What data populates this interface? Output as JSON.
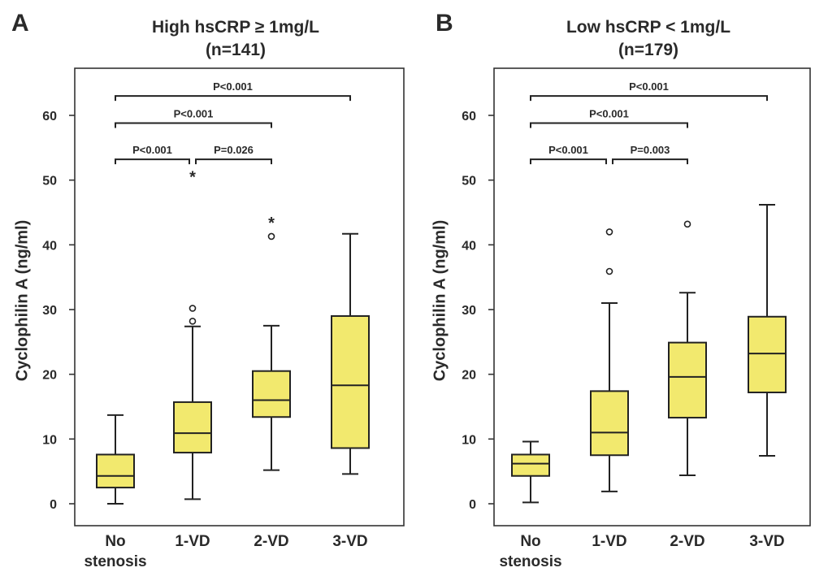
{
  "colors": {
    "box_fill": "#f2e96e",
    "line": "#222222"
  },
  "chart_data": [
    {
      "type": "box",
      "panel_label": "A",
      "title_lines": [
        "High hsCRP ≥ 1mg/L",
        "(n=141)"
      ],
      "ylabel": "Cyclophilin A (ng/ml)",
      "ylim": [
        -3.5,
        67
      ],
      "yticks": [
        "0",
        "10",
        "20",
        "30",
        "40",
        "50",
        "60"
      ],
      "categories": [
        {
          "label_lines": [
            "No",
            "stenosis"
          ],
          "min": 0,
          "q1": 2.5,
          "median": 4.3,
          "q3": 7.6,
          "max": 13.7,
          "outliers": []
        },
        {
          "label_lines": [
            "1-VD"
          ],
          "min": 0.7,
          "q1": 7.9,
          "median": 10.9,
          "q3": 15.7,
          "max": 27.4,
          "outliers": [
            {
              "value": 28.2,
              "marker": "circle"
            },
            {
              "value": 30.2,
              "marker": "circle"
            },
            {
              "value": 50.8,
              "marker": "star"
            }
          ]
        },
        {
          "label_lines": [
            "2-VD"
          ],
          "min": 5.2,
          "q1": 13.4,
          "median": 16.0,
          "q3": 20.5,
          "max": 27.5,
          "outliers": [
            {
              "value": 41.3,
              "marker": "circle"
            },
            {
              "value": 43.7,
              "marker": "star"
            }
          ]
        },
        {
          "label_lines": [
            "3-VD"
          ],
          "min": 4.6,
          "q1": 8.6,
          "median": 18.3,
          "q3": 29.0,
          "max": 41.7,
          "outliers": []
        }
      ],
      "comparisons": [
        {
          "from": 0,
          "to": 3,
          "label": "P<0.001",
          "level": 63.0
        },
        {
          "from": 0,
          "to": 2,
          "label": "P<0.001",
          "level": 58.8
        },
        {
          "from": 0,
          "to": 1,
          "label": "P<0.001",
          "level": 53.2
        },
        {
          "from": 1,
          "to": 2,
          "label": "P=0.026",
          "level": 53.2
        }
      ]
    },
    {
      "type": "box",
      "panel_label": "B",
      "title_lines": [
        "Low hsCRP < 1mg/L",
        "(n=179)"
      ],
      "ylabel": "Cyclophilin A (ng/ml)",
      "ylim": [
        -3.5,
        67
      ],
      "yticks": [
        "0",
        "10",
        "20",
        "30",
        "40",
        "50",
        "60"
      ],
      "categories": [
        {
          "label_lines": [
            "No",
            "stenosis"
          ],
          "min": 0.2,
          "q1": 4.3,
          "median": 6.2,
          "q3": 7.6,
          "max": 9.6,
          "outliers": []
        },
        {
          "label_lines": [
            "1-VD"
          ],
          "min": 1.9,
          "q1": 7.5,
          "median": 11.0,
          "q3": 17.4,
          "max": 31.0,
          "outliers": [
            {
              "value": 35.9,
              "marker": "circle"
            },
            {
              "value": 42.0,
              "marker": "circle"
            }
          ]
        },
        {
          "label_lines": [
            "2-VD"
          ],
          "min": 4.4,
          "q1": 13.3,
          "median": 19.6,
          "q3": 24.9,
          "max": 32.6,
          "outliers": [
            {
              "value": 43.2,
              "marker": "circle"
            }
          ]
        },
        {
          "label_lines": [
            "3-VD"
          ],
          "min": 7.4,
          "q1": 17.2,
          "median": 23.2,
          "q3": 28.9,
          "max": 46.2,
          "outliers": []
        }
      ],
      "comparisons": [
        {
          "from": 0,
          "to": 3,
          "label": "P<0.001",
          "level": 63.0
        },
        {
          "from": 0,
          "to": 2,
          "label": "P<0.001",
          "level": 58.8
        },
        {
          "from": 0,
          "to": 1,
          "label": "P<0.001",
          "level": 53.2
        },
        {
          "from": 1,
          "to": 2,
          "label": "P=0.003",
          "level": 53.2
        }
      ]
    }
  ]
}
